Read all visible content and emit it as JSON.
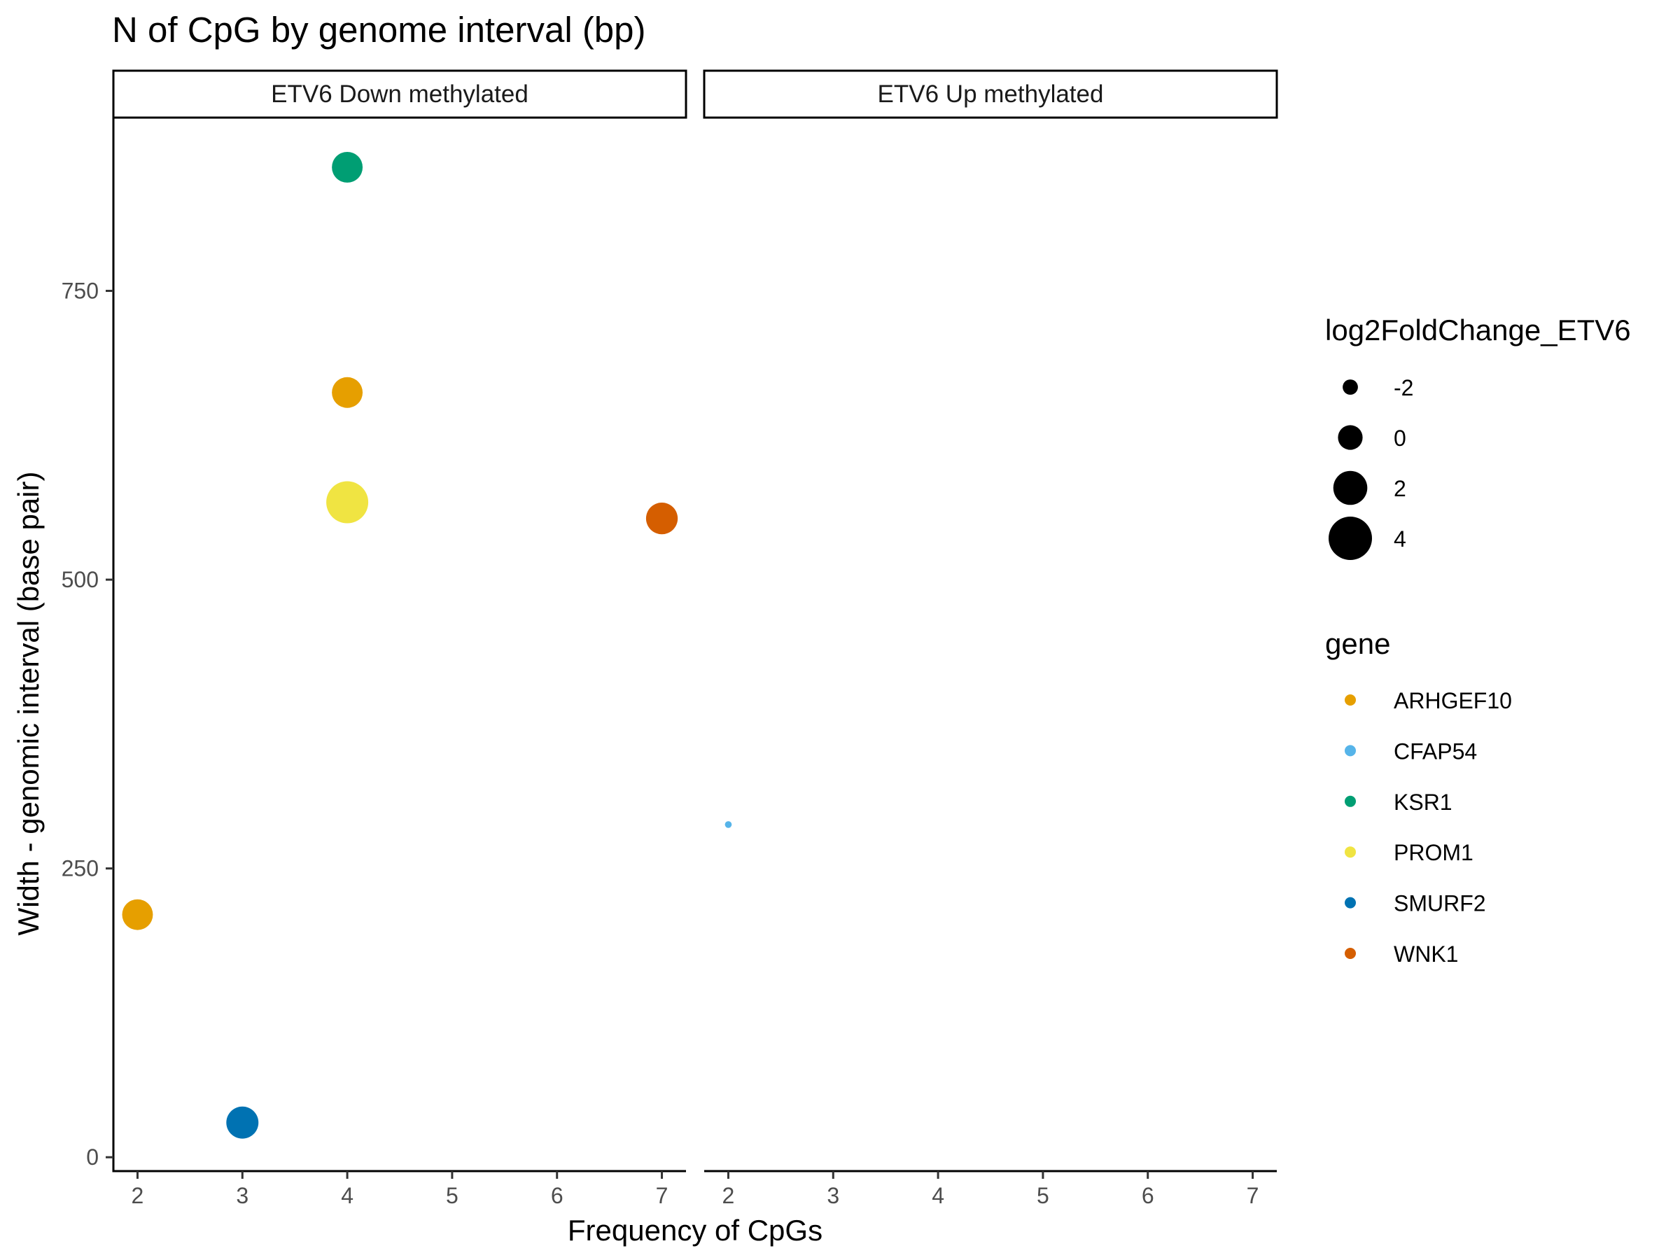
{
  "chart_data": {
    "type": "scatter",
    "title": "N of CpG by genome interval (bp)",
    "xlabel": "Frequency of CpGs",
    "ylabel": "Width - genomic interval (base pair)",
    "xlim": [
      1.77,
      7.23
    ],
    "ylim": [
      -12,
      900
    ],
    "x_ticks": [
      2,
      3,
      4,
      5,
      6,
      7
    ],
    "y_ticks": [
      0,
      250,
      500,
      750
    ],
    "panels": [
      {
        "label": "ETV6 Down methylated",
        "points": [
          {
            "x": 4,
            "y": 857,
            "gene": "KSR1",
            "log2FoldChange_ETV6": 1.3
          },
          {
            "x": 4,
            "y": 662,
            "gene": "ARHGEF10",
            "log2FoldChange_ETV6": 1.3
          },
          {
            "x": 4,
            "y": 567,
            "gene": "PROM1",
            "log2FoldChange_ETV6": 3.7
          },
          {
            "x": 7,
            "y": 553,
            "gene": "WNK1",
            "log2FoldChange_ETV6": 1.5
          },
          {
            "x": 2,
            "y": 210,
            "gene": "ARHGEF10",
            "log2FoldChange_ETV6": 1.3
          },
          {
            "x": 3,
            "y": 30,
            "gene": "SMURF2",
            "log2FoldChange_ETV6": 1.6
          }
        ]
      },
      {
        "label": "ETV6 Up methylated",
        "points": [
          {
            "x": 2,
            "y": 288,
            "gene": "CFAP54",
            "log2FoldChange_ETV6": -3.8
          }
        ]
      }
    ],
    "size_legend": {
      "title": "log2FoldChange_ETV6",
      "values": [
        -2,
        0,
        2,
        4
      ]
    },
    "color_legend": {
      "title": "gene",
      "entries": [
        {
          "name": "ARHGEF10",
          "color": "#E69F00"
        },
        {
          "name": "CFAP54",
          "color": "#56B4E9"
        },
        {
          "name": "KSR1",
          "color": "#009E73"
        },
        {
          "name": "PROM1",
          "color": "#F0E442"
        },
        {
          "name": "SMURF2",
          "color": "#0072B2"
        },
        {
          "name": "WNK1",
          "color": "#D55E00"
        }
      ]
    },
    "grid": false,
    "legend_position": "right"
  }
}
